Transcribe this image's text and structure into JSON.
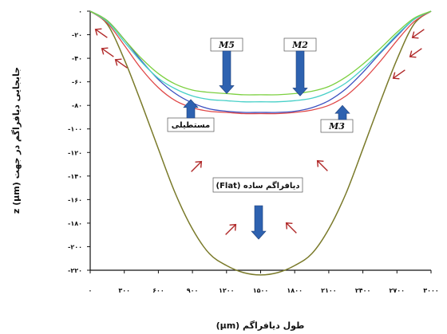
{
  "chart_data": {
    "type": "line",
    "xlabel": "طول دیافراگم (µm)",
    "ylabel": "جابجایی دیافراگم در جهت z (µm)",
    "xlim": [
      0,
      3000
    ],
    "ylim": [
      -220,
      0
    ],
    "x_ticks": [
      0,
      300,
      600,
      900,
      1200,
      1500,
      1800,
      2100,
      2400,
      2700,
      3000
    ],
    "x_tick_labels": [
      "۰",
      "۳۰۰",
      "۶۰۰",
      "۹۰۰",
      "۱۲۰۰",
      "۱۵۰۰",
      "۱۸۰۰",
      "۲۱۰۰",
      "۲۴۰۰",
      "۲۷۰۰",
      "۳۰۰۰"
    ],
    "y_ticks": [
      0,
      -20,
      -40,
      -60,
      -80,
      -100,
      -120,
      -140,
      -160,
      -180,
      -200,
      -220
    ],
    "y_tick_labels": [
      "۰",
      "-۲۰",
      "-۴۰",
      "-۶۰",
      "-۸۰",
      "-۱۰۰",
      "-۱۲۰",
      "-۱۴۰",
      "-۱۶۰",
      "-۱۸۰",
      "-۲۰۰",
      "-۲۲۰"
    ],
    "grid": false,
    "x": [
      0,
      150,
      300,
      450,
      600,
      750,
      900,
      1050,
      1200,
      1350,
      1500,
      1650,
      1800,
      1950,
      2100,
      2250,
      2400,
      2550,
      2700,
      2850,
      3000
    ],
    "series": [
      {
        "color": "#7a7a2a",
        "values": [
          0,
          -11,
          -41,
          -78,
          -117,
          -155,
          -185,
          -206,
          -216,
          -222,
          -224,
          -222,
          -216,
          -206,
          -185,
          -155,
          -117,
          -78,
          -41,
          -11,
          0
        ]
      },
      {
        "color": "#e04848",
        "values": [
          0,
          -10,
          -29,
          -49,
          -65,
          -76,
          -82,
          -85,
          -86,
          -87,
          -87,
          -87,
          -86,
          -84,
          -80,
          -72,
          -59,
          -43,
          -25,
          -9,
          0
        ]
      },
      {
        "color": "#3a4fc0",
        "values": [
          0,
          -8,
          -24,
          -42,
          -58,
          -70,
          -78,
          -83,
          -85,
          -86,
          -86,
          -86,
          -85,
          -82,
          -76,
          -66,
          -52,
          -36,
          -21,
          -7,
          0
        ]
      },
      {
        "color": "#48d0c8",
        "values": [
          0,
          -9,
          -26,
          -43,
          -57,
          -66,
          -72,
          -75,
          -76,
          -77,
          -77,
          -77,
          -76,
          -74,
          -69,
          -61,
          -49,
          -35,
          -20,
          -7,
          0
        ]
      },
      {
        "color": "#7cd040",
        "values": [
          0,
          -8,
          -24,
          -40,
          -53,
          -62,
          -67,
          -69,
          -70,
          -71,
          -71,
          -71,
          -70,
          -68,
          -64,
          -56,
          -45,
          -32,
          -18,
          -6,
          0
        ]
      }
    ],
    "annotations": [
      {
        "text": "M5",
        "x": 1050,
        "y": -33,
        "arrow_to_y": -70
      },
      {
        "text": "M2",
        "x": 1850,
        "y": -33,
        "arrow_to_y": -72
      },
      {
        "text": "M3",
        "x": 2150,
        "y": -110,
        "arrow_to_y": -80
      },
      {
        "text": "مستطیلی",
        "x": 950,
        "y": -108,
        "arrow_to_y": -75
      },
      {
        "text": "دیافراگم ساده (Flat)",
        "x": 1500,
        "y": -152,
        "arrow_to_y": -195
      }
    ],
    "colors": {
      "up_arrow": "#2e62b0",
      "pressure_arrow": "#b02828",
      "axis": "#111111"
    }
  }
}
